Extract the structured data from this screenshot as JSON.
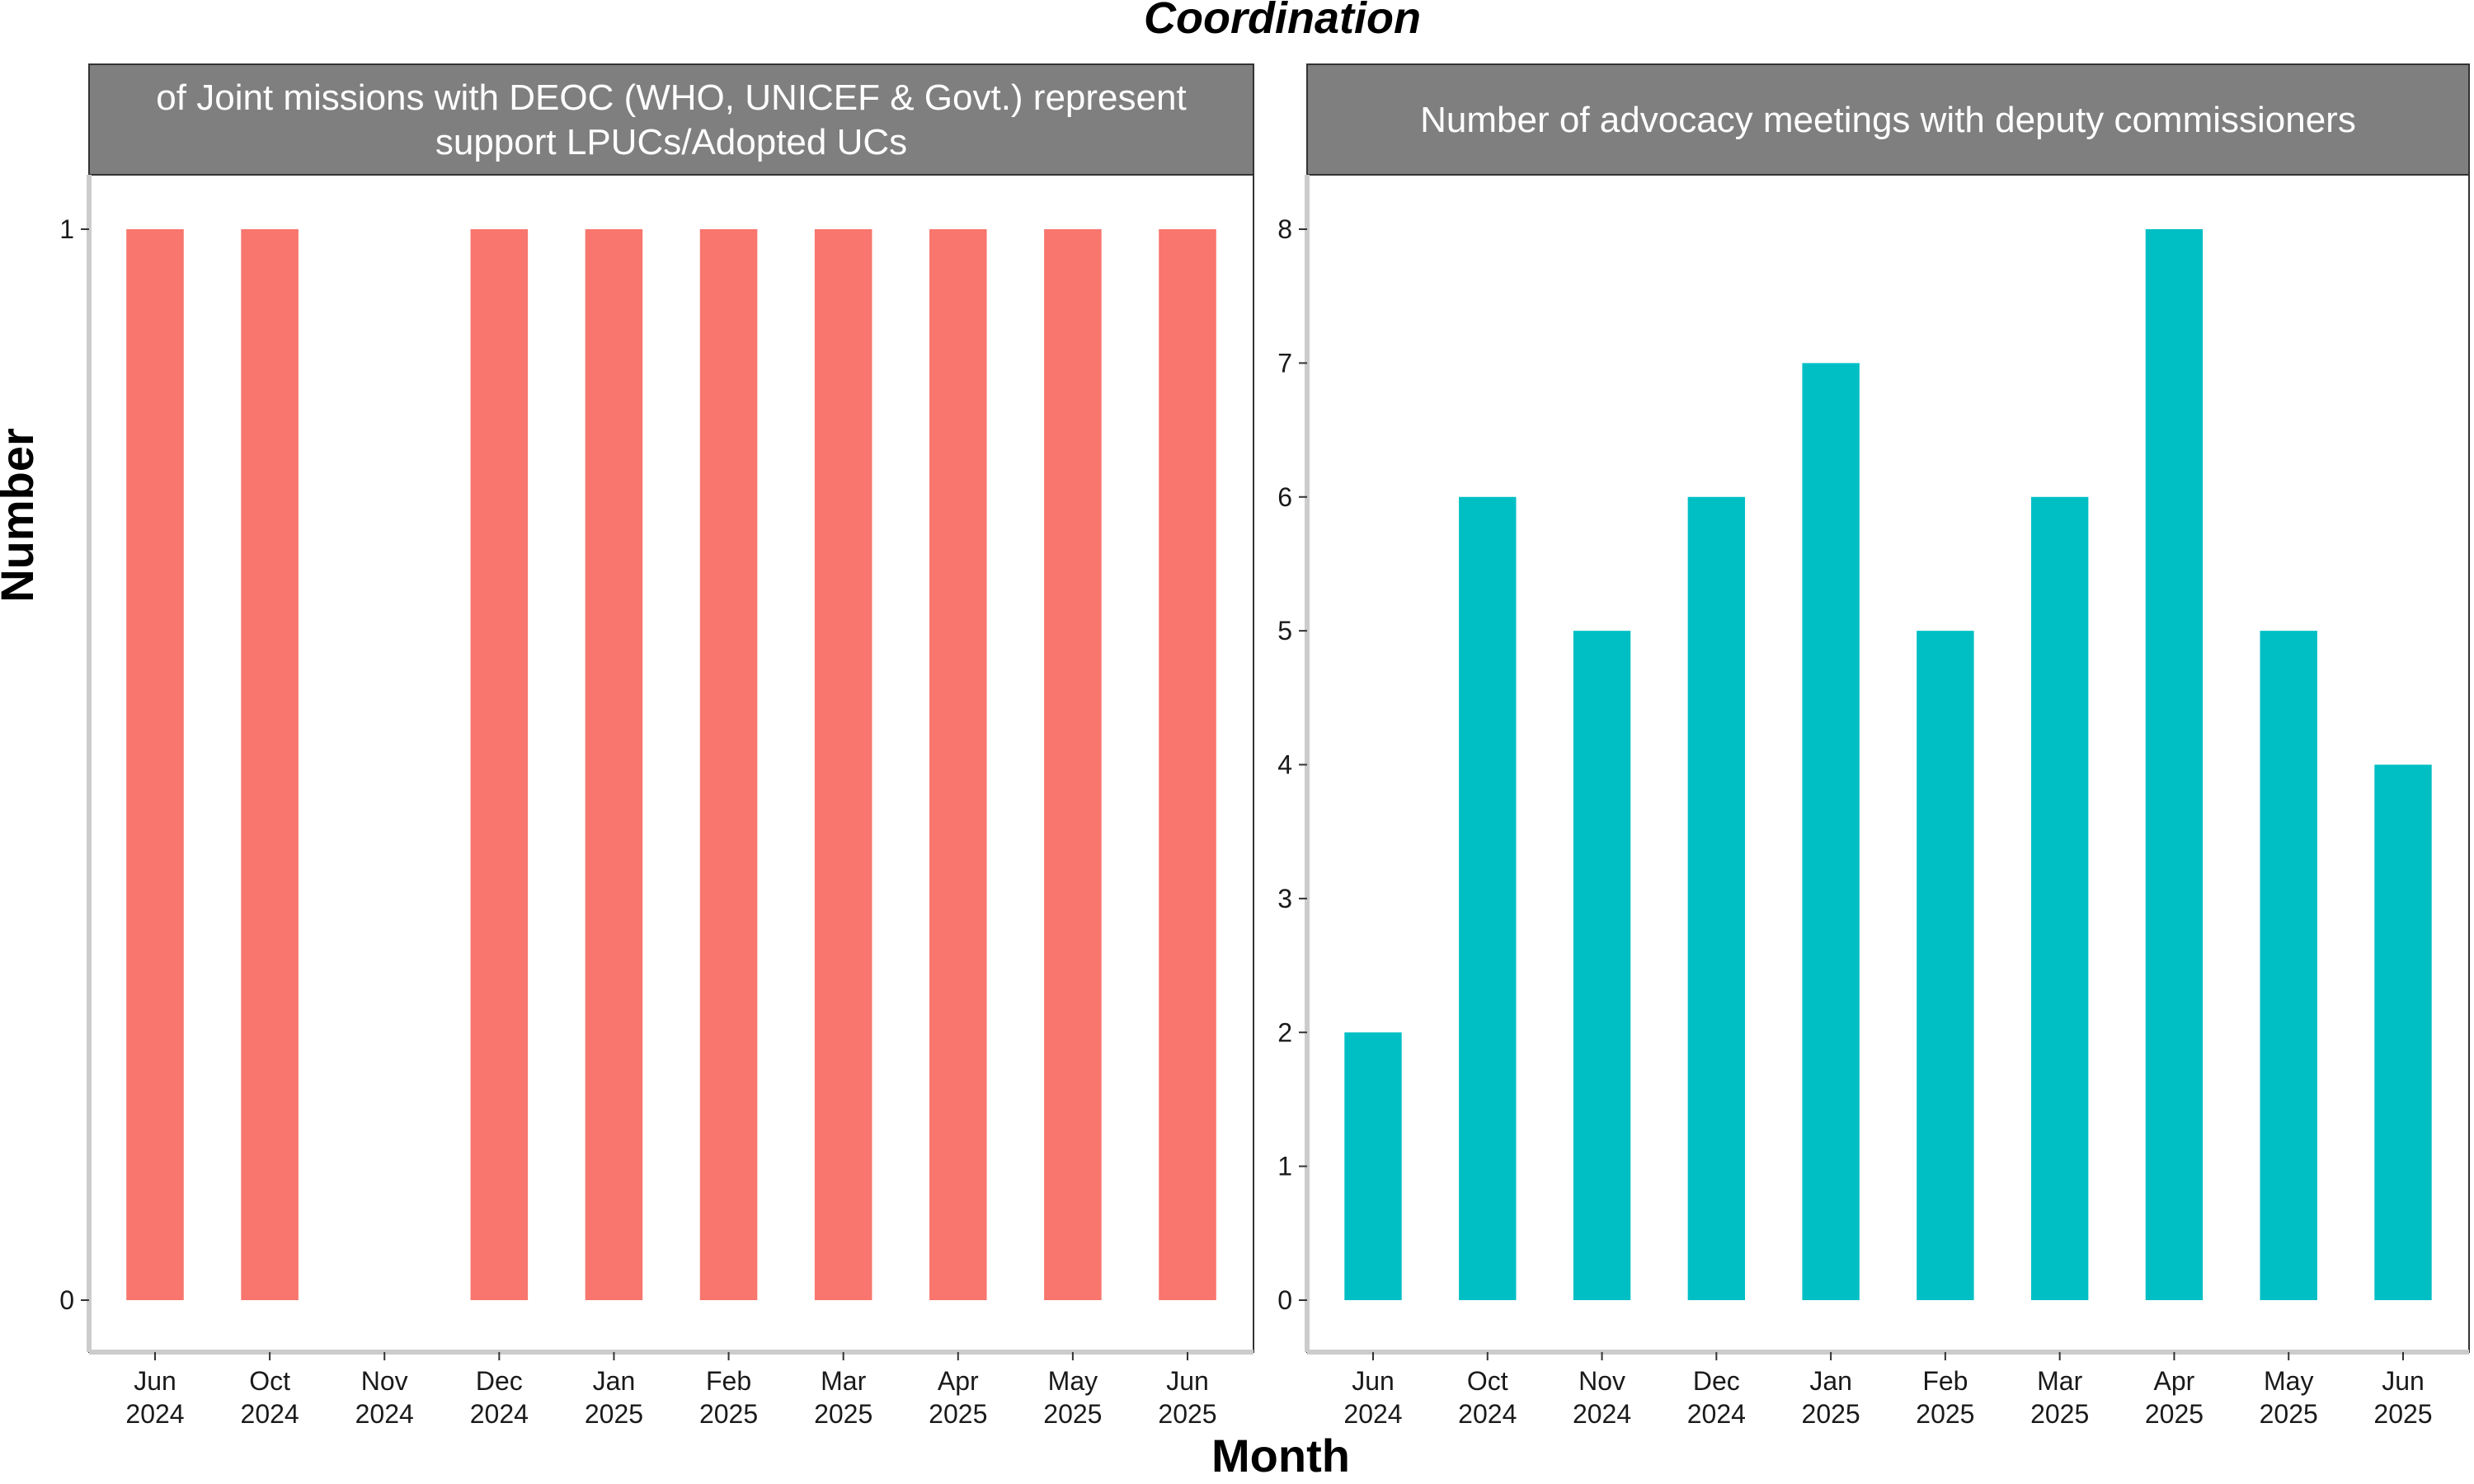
{
  "chart_data": {
    "title": "Coordination",
    "xlabel": "Month",
    "ylabel": "Number",
    "legend": "none",
    "grid": false,
    "panels": [
      {
        "type": "bar",
        "strip_title_lines": [
          "of Joint missions with DEOC (WHO, UNICEF & Govt.) represent",
          "support LPUCs/Adopted UCs"
        ],
        "categories": [
          {
            "month": "Jun",
            "year": "2024"
          },
          {
            "month": "Oct",
            "year": "2024"
          },
          {
            "month": "Nov",
            "year": "2024"
          },
          {
            "month": "Dec",
            "year": "2024"
          },
          {
            "month": "Jan",
            "year": "2025"
          },
          {
            "month": "Feb",
            "year": "2025"
          },
          {
            "month": "Mar",
            "year": "2025"
          },
          {
            "month": "Apr",
            "year": "2025"
          },
          {
            "month": "May",
            "year": "2025"
          },
          {
            "month": "Jun",
            "year": "2025"
          }
        ],
        "values": [
          1,
          1,
          0,
          1,
          1,
          1,
          1,
          1,
          1,
          1
        ],
        "ylim": [
          0,
          1
        ],
        "yticks": [
          0,
          1
        ],
        "color": "#F8766D"
      },
      {
        "type": "bar",
        "strip_title_lines": [
          "Number of advocacy meetings with deputy commissioners"
        ],
        "categories": [
          {
            "month": "Jun",
            "year": "2024"
          },
          {
            "month": "Oct",
            "year": "2024"
          },
          {
            "month": "Nov",
            "year": "2024"
          },
          {
            "month": "Dec",
            "year": "2024"
          },
          {
            "month": "Jan",
            "year": "2025"
          },
          {
            "month": "Feb",
            "year": "2025"
          },
          {
            "month": "Mar",
            "year": "2025"
          },
          {
            "month": "Apr",
            "year": "2025"
          },
          {
            "month": "May",
            "year": "2025"
          },
          {
            "month": "Jun",
            "year": "2025"
          }
        ],
        "values": [
          2,
          6,
          5,
          6,
          7,
          5,
          6,
          8,
          5,
          4
        ],
        "ylim": [
          0,
          8
        ],
        "yticks": [
          0,
          1,
          2,
          3,
          4,
          5,
          6,
          7,
          8
        ],
        "color": "#00BFC4"
      }
    ]
  }
}
